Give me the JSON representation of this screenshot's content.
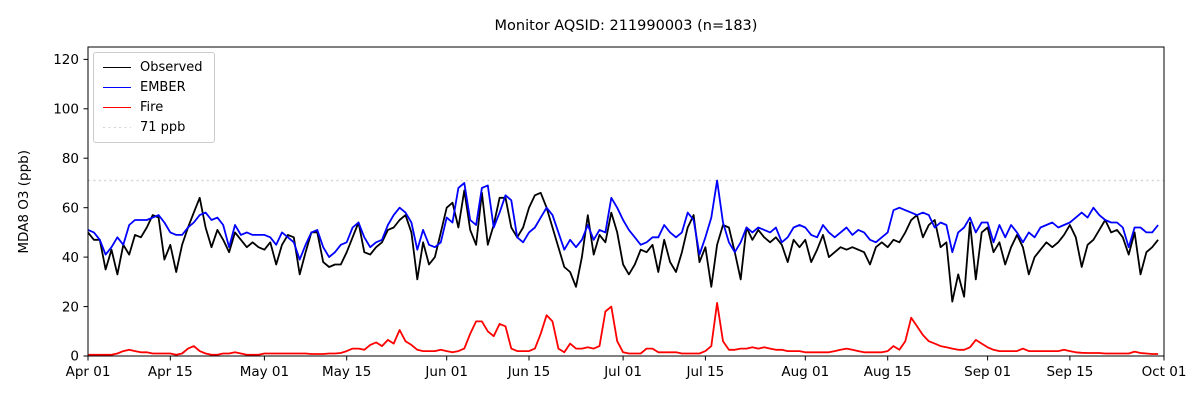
{
  "chart_data": {
    "type": "line",
    "title": "Monitor AQSID: 211990003 (n=183)",
    "ylabel": "MDA8 O3 (ppb)",
    "n_points": 183,
    "ylim": [
      0,
      125
    ],
    "y_ticks": [
      0,
      20,
      40,
      60,
      80,
      100,
      120
    ],
    "x_ticks": [
      {
        "label": "Apr 01",
        "day": 0
      },
      {
        "label": "Apr 15",
        "day": 14
      },
      {
        "label": "May 01",
        "day": 30
      },
      {
        "label": "May 15",
        "day": 44
      },
      {
        "label": "Jun 01",
        "day": 61
      },
      {
        "label": "Jun 15",
        "day": 75
      },
      {
        "label": "Jul 01",
        "day": 91
      },
      {
        "label": "Jul 15",
        "day": 105
      },
      {
        "label": "Aug 01",
        "day": 122
      },
      {
        "label": "Aug 15",
        "day": 136
      },
      {
        "label": "Sep 01",
        "day": 153
      },
      {
        "label": "Sep 15",
        "day": 167
      },
      {
        "label": "Oct 01",
        "day": 183
      }
    ],
    "grid": false,
    "legend_position": "upper left",
    "threshold_line": {
      "value": 71,
      "label": "71 ppb",
      "color": "#d3d3d3",
      "style": "dotted"
    },
    "legend": [
      {
        "label": "Observed",
        "color": "#000000",
        "style": "solid"
      },
      {
        "label": "EMBER",
        "color": "#0000ff",
        "style": "solid"
      },
      {
        "label": "Fire",
        "color": "#ff0000",
        "style": "solid"
      },
      {
        "label": "71 ppb",
        "color": "#d3d3d3",
        "style": "dotted"
      }
    ],
    "series": [
      {
        "name": "Observed",
        "color": "#000000",
        "values": [
          50,
          47,
          47,
          35,
          43,
          33,
          45,
          41,
          49,
          48,
          52,
          57,
          56,
          39,
          45,
          34,
          45,
          52,
          58,
          64,
          52,
          44,
          51,
          47,
          42,
          50,
          47,
          44,
          46,
          44,
          43,
          46,
          37,
          45,
          49,
          48,
          33,
          42,
          50,
          50,
          38,
          36,
          37,
          37,
          42,
          48,
          54,
          42,
          41,
          44,
          46,
          51,
          52,
          55,
          57,
          50,
          31,
          46,
          37,
          40,
          50,
          60,
          62,
          52,
          67,
          51,
          45,
          66,
          45,
          53,
          64,
          64,
          52,
          48,
          52,
          60,
          65,
          66,
          60,
          52,
          44,
          36,
          34,
          28,
          40,
          57,
          41,
          49,
          46,
          58,
          50,
          37,
          33,
          37,
          43,
          42,
          45,
          34,
          47,
          38,
          34,
          42,
          52,
          57,
          38,
          44,
          28,
          45,
          53,
          52,
          42,
          31,
          52,
          47,
          51,
          48,
          46,
          48,
          45,
          38,
          47,
          44,
          47,
          38,
          43,
          49,
          40,
          42,
          44,
          43,
          44,
          43,
          42,
          37,
          44,
          46,
          44,
          47,
          46,
          50,
          55,
          57,
          48,
          53,
          55,
          44,
          46,
          22,
          33,
          24,
          54,
          31,
          50,
          52,
          42,
          46,
          37,
          44,
          49,
          44,
          33,
          40,
          43,
          46,
          44,
          46,
          49,
          53,
          48,
          36,
          45,
          47,
          51,
          55,
          50,
          51,
          48,
          41,
          50,
          33,
          42,
          44,
          47
        ]
      },
      {
        "name": "EMBER",
        "color": "#0000ff",
        "values": [
          51,
          50,
          47,
          41,
          44,
          48,
          45,
          53,
          55,
          55,
          55,
          56,
          57,
          54,
          50,
          49,
          49,
          52,
          54,
          57,
          58,
          55,
          56,
          53,
          44,
          53,
          49,
          50,
          49,
          49,
          49,
          48,
          45,
          50,
          48,
          46,
          39,
          45,
          50,
          51,
          44,
          40,
          42,
          45,
          46,
          52,
          54,
          48,
          44,
          46,
          47,
          53,
          57,
          60,
          58,
          54,
          43,
          51,
          45,
          44,
          46,
          56,
          54,
          68,
          70,
          55,
          53,
          68,
          69,
          52,
          58,
          65,
          63,
          48,
          46,
          50,
          52,
          56,
          60,
          57,
          50,
          43,
          47,
          44,
          47,
          53,
          47,
          51,
          50,
          64,
          60,
          55,
          51,
          48,
          45,
          46,
          48,
          48,
          53,
          50,
          48,
          50,
          58,
          55,
          41,
          48,
          56,
          71,
          54,
          46,
          42,
          46,
          52,
          50,
          52,
          51,
          50,
          52,
          46,
          48,
          52,
          53,
          52,
          49,
          48,
          53,
          50,
          48,
          50,
          52,
          49,
          51,
          50,
          47,
          46,
          48,
          50,
          59,
          60,
          59,
          58,
          57,
          58,
          57,
          52,
          54,
          53,
          42,
          50,
          52,
          56,
          50,
          54,
          54,
          46,
          53,
          48,
          53,
          50,
          46,
          50,
          48,
          52,
          53,
          54,
          52,
          53,
          54,
          56,
          58,
          56,
          60,
          57,
          55,
          54,
          54,
          52,
          44,
          52,
          52,
          50,
          50,
          53
        ]
      },
      {
        "name": "Fire",
        "color": "#ff0000",
        "values": [
          0.5,
          0.5,
          0.5,
          0.5,
          0.5,
          1,
          2,
          2.5,
          2,
          1.5,
          1.5,
          1,
          1,
          1,
          1,
          0.5,
          1,
          3,
          4,
          2,
          1,
          0.5,
          0.5,
          1,
          1,
          1.5,
          1,
          0.5,
          0.5,
          0.5,
          1,
          1,
          1,
          1,
          1,
          1,
          1,
          1,
          0.8,
          0.8,
          0.8,
          1,
          1,
          1.2,
          2,
          3,
          3,
          2.5,
          4.5,
          5.5,
          4,
          6.5,
          5,
          10.5,
          6,
          4.5,
          2.5,
          2,
          2,
          2,
          2.5,
          2,
          1.5,
          2,
          3,
          9,
          14,
          14,
          10,
          8,
          13,
          12,
          3,
          2,
          2,
          2,
          3,
          9,
          16.5,
          14,
          3,
          1.5,
          5,
          3,
          3,
          3.5,
          3,
          4,
          18,
          20,
          6,
          1.5,
          1,
          1,
          1,
          3,
          3,
          1.5,
          1.5,
          1.5,
          1.5,
          1,
          1,
          1,
          1,
          2,
          4,
          21.5,
          6,
          2.5,
          2.5,
          3,
          3,
          3.5,
          3,
          3.5,
          3,
          2.5,
          2.5,
          2,
          2,
          2,
          1.5,
          1.5,
          1.5,
          1.5,
          1.5,
          2,
          2.5,
          3,
          2.5,
          2,
          1.5,
          1.5,
          1.5,
          1.5,
          2,
          4,
          2.5,
          6,
          15.5,
          12,
          8.5,
          6,
          5,
          4,
          3.5,
          3,
          2.5,
          2.5,
          3.5,
          6.5,
          5,
          3.5,
          2.5,
          2,
          2,
          2,
          2,
          3,
          2,
          2,
          2,
          2,
          2,
          2,
          2.5,
          2,
          1.5,
          1.3,
          1.2,
          1.2,
          1.2,
          1,
          1,
          1,
          1,
          1,
          1.8,
          1.2,
          1,
          0.8,
          0.8
        ]
      }
    ]
  }
}
